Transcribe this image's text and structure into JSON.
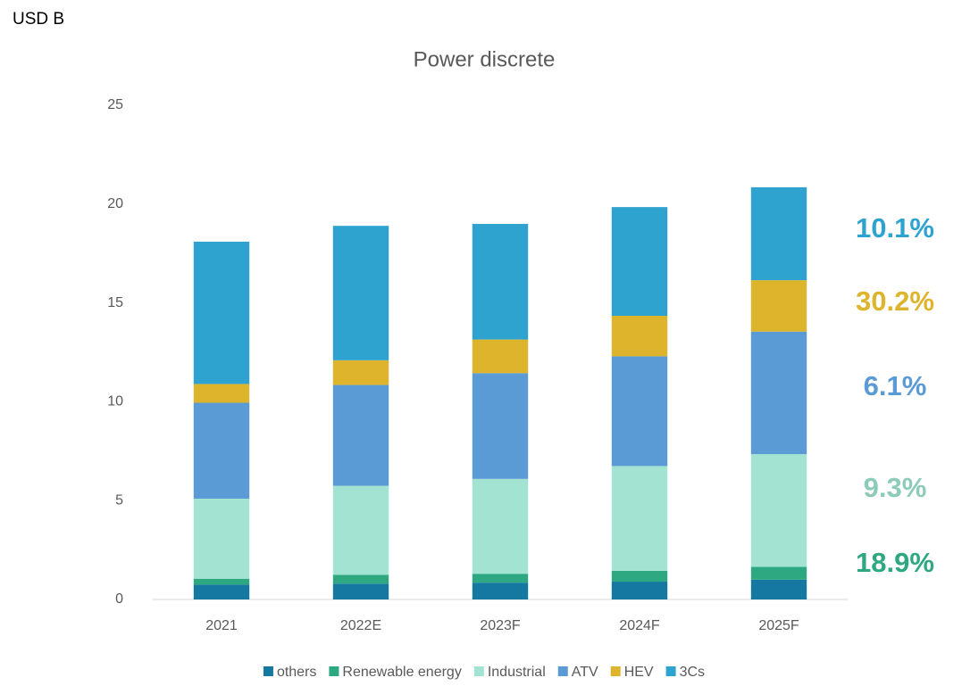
{
  "chart_data": {
    "type": "stacked_bar",
    "title": "Power discrete",
    "y_axis_label": "USD B",
    "categories": [
      "2021",
      "2022E",
      "2023F",
      "2024F",
      "2025F"
    ],
    "series": [
      {
        "name": "others",
        "color": "#1478a0",
        "values": [
          0.75,
          0.8,
          0.85,
          0.9,
          1.0
        ]
      },
      {
        "name": "Renewable energy",
        "color": "#2ea880",
        "values": [
          0.3,
          0.45,
          0.45,
          0.55,
          0.65
        ]
      },
      {
        "name": "Industrial",
        "color": "#a3e3d2",
        "values": [
          4.05,
          4.5,
          4.8,
          5.3,
          5.7
        ]
      },
      {
        "name": "ATV",
        "color": "#5b9bd5",
        "values": [
          4.85,
          5.1,
          5.35,
          5.55,
          6.2
        ]
      },
      {
        "name": "HEV",
        "color": "#ddb42c",
        "values": [
          0.95,
          1.25,
          1.7,
          2.05,
          2.6
        ]
      },
      {
        "name": "3Cs",
        "color": "#2fa3cf",
        "values": [
          7.2,
          6.8,
          5.85,
          5.5,
          4.7
        ]
      }
    ],
    "annotations": [
      {
        "text": "10.1%",
        "color": "#2fa3cf"
      },
      {
        "text": "30.2%",
        "color": "#ddb42c"
      },
      {
        "text": "6.1%",
        "color": "#5b9bd5"
      },
      {
        "text": "9.3%",
        "color": "#8ccbb8"
      },
      {
        "text": "18.9%",
        "color": "#2ea880"
      }
    ],
    "ylim": [
      0,
      25
    ],
    "yticks": [
      0,
      5,
      10,
      15,
      20,
      25
    ],
    "grid": false,
    "legend": "bottom"
  }
}
